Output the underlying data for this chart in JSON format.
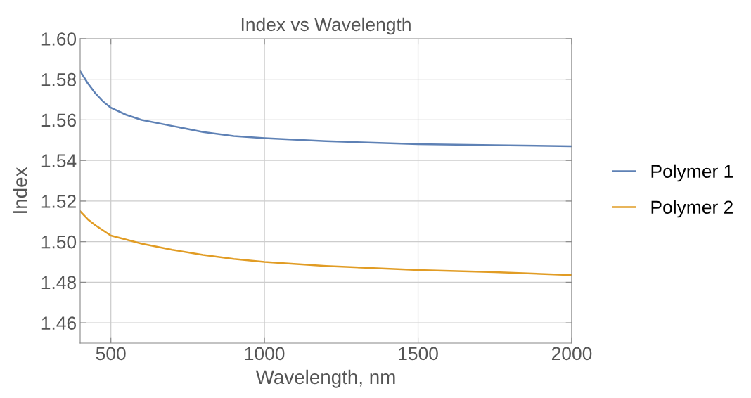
{
  "chart_data": {
    "type": "line",
    "title": "Index vs Wavelength",
    "xlabel": "Wavelength, nm",
    "ylabel": "Index",
    "xlim": [
      400,
      2000
    ],
    "xticks": [
      500,
      1000,
      1500,
      2000
    ],
    "ylim": [
      1.45,
      1.6
    ],
    "yticks": [
      1.46,
      1.48,
      {
        "value": 1.5,
        "label": "1.50"
      },
      1.52,
      1.54,
      1.56,
      1.58,
      {
        "value": 1.6,
        "label": "1.60"
      }
    ],
    "grid": true,
    "legend": "right",
    "marker": "none",
    "line_style": "solid",
    "x": [
      400,
      425,
      450,
      475,
      500,
      550,
      600,
      700,
      800,
      900,
      1000,
      1200,
      1500,
      1750,
      2000
    ],
    "series": [
      {
        "name": "Polymer 1",
        "color": "#5e81b5",
        "values": [
          1.584,
          1.578,
          1.573,
          1.569,
          1.566,
          1.5625,
          1.56,
          1.557,
          1.554,
          1.552,
          1.551,
          1.5495,
          1.548,
          1.5475,
          1.547
        ]
      },
      {
        "name": "Polymer 2",
        "color": "#e19c24",
        "values": [
          1.515,
          1.511,
          1.508,
          1.5055,
          1.503,
          1.501,
          1.499,
          1.496,
          1.4935,
          1.4915,
          1.49,
          1.488,
          1.486,
          1.485,
          1.4835
        ]
      }
    ]
  }
}
